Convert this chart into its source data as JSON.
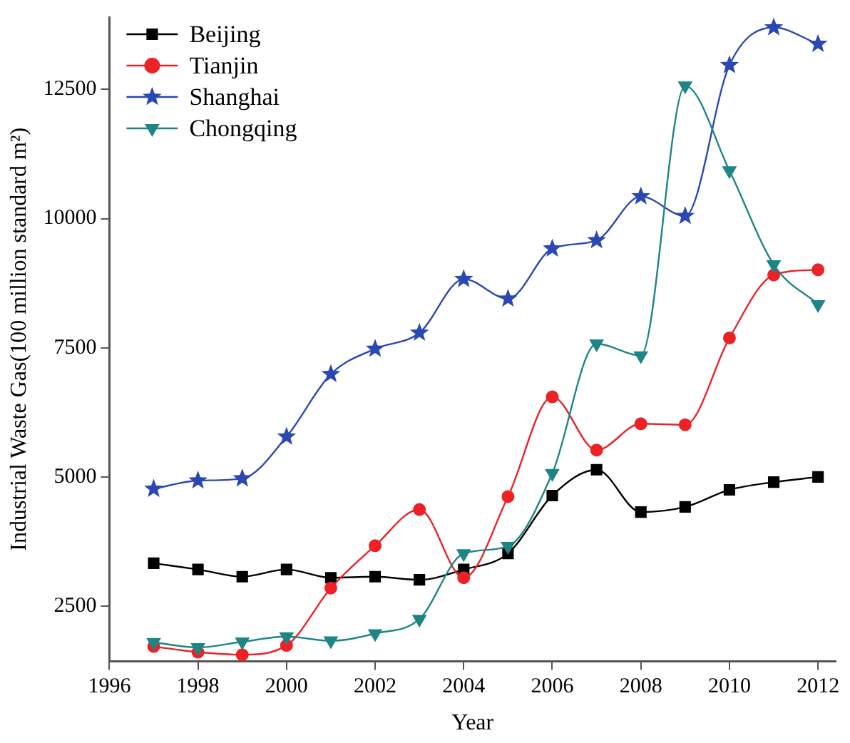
{
  "chart_data": {
    "type": "line",
    "xlabel": "Year",
    "ylabel": "Industrial Waste Gas(100 million standard m²)",
    "x": [
      1997,
      1998,
      1999,
      2000,
      2001,
      2002,
      2003,
      2004,
      2005,
      2006,
      2007,
      2008,
      2009,
      2010,
      2011,
      2012
    ],
    "series": [
      {
        "name": "Beijing",
        "color": "#000000",
        "marker": "square",
        "values": [
          3330,
          3210,
          3070,
          3210,
          3050,
          3070,
          3010,
          3210,
          3520,
          4640,
          5140,
          4320,
          4420,
          4750,
          4900,
          5000
        ]
      },
      {
        "name": "Tianjin",
        "color": "#ec2227",
        "marker": "circle",
        "values": [
          1720,
          1610,
          1560,
          1740,
          2850,
          3670,
          4370,
          3050,
          4620,
          6550,
          5520,
          6030,
          6010,
          7690,
          8910,
          9010
        ]
      },
      {
        "name": "Shanghai",
        "color": "#2b48b2",
        "marker": "star",
        "values": [
          4770,
          4930,
          4970,
          5780,
          6990,
          7480,
          7790,
          8830,
          8450,
          9420,
          9580,
          10430,
          10050,
          12970,
          13700,
          13380
        ]
      },
      {
        "name": "Chongqing",
        "color": "#1e8585",
        "marker": "triangle",
        "values": [
          1800,
          1700,
          1810,
          1910,
          1830,
          1970,
          2250,
          3520,
          3660,
          5070,
          7580,
          7350,
          12570,
          10930,
          9110,
          8340
        ]
      }
    ],
    "xlim": [
      1996,
      2012.4
    ],
    "xticks": [
      1996,
      1998,
      2000,
      2002,
      2004,
      2006,
      2008,
      2010,
      2012
    ],
    "ylim": [
      1430,
      13900
    ],
    "yticks": [
      2500,
      5000,
      7500,
      10000,
      12500
    ],
    "grid": false,
    "legend": "top left"
  }
}
